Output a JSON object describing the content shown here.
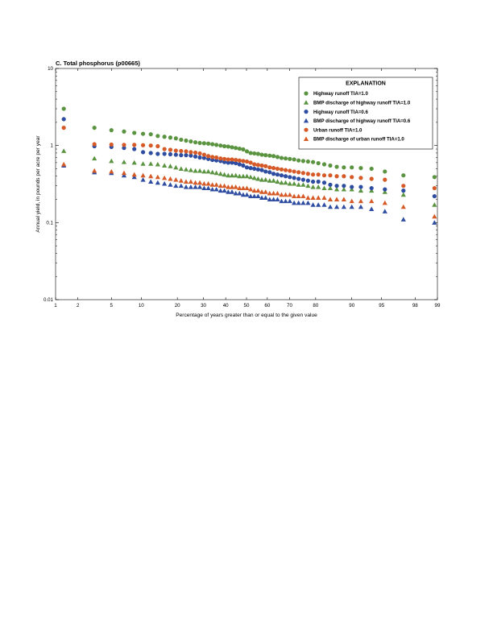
{
  "chart_data": {
    "type": "scatter",
    "title": "C. Total phosphorus (p00665)",
    "xlabel": "Percentage of years greater than or equal to the given value",
    "ylabel": "Annual yield, in pounds per acre per year",
    "x_scale": "probability",
    "y_scale": "log",
    "xlim": [
      1,
      99
    ],
    "ylim": [
      0.01,
      10
    ],
    "x_ticks": [
      1,
      2,
      5,
      10,
      20,
      30,
      40,
      50,
      60,
      70,
      80,
      90,
      95,
      98,
      99
    ],
    "y_ticks": [
      0.01,
      0.1,
      1,
      10
    ],
    "grid": false,
    "legend": {
      "title": "EXPLANATION",
      "position": "top-right"
    },
    "x": [
      1.3,
      3.2,
      5.0,
      6.8,
      8.6,
      10.4,
      12.2,
      14.0,
      15.9,
      17.7,
      19.5,
      21.3,
      23.1,
      24.9,
      26.7,
      28.5,
      30.3,
      32.1,
      33.9,
      35.7,
      37.6,
      39.4,
      41.2,
      43.0,
      44.8,
      46.6,
      48.4,
      50.2,
      52.0,
      53.8,
      55.6,
      57.4,
      59.2,
      61.1,
      62.9,
      64.7,
      66.5,
      68.3,
      70.1,
      71.9,
      73.7,
      75.5,
      77.3,
      79.1,
      80.9,
      82.8,
      84.6,
      86.4,
      88.2,
      90.0,
      91.8,
      93.6,
      95.4,
      97.2,
      98.9
    ],
    "series": [
      {
        "name": "Highway runoff TIA=1.0",
        "marker": "circle",
        "color": "#5b9440",
        "values": [
          3.0,
          1.7,
          1.58,
          1.52,
          1.46,
          1.42,
          1.4,
          1.33,
          1.3,
          1.27,
          1.24,
          1.19,
          1.16,
          1.13,
          1.1,
          1.08,
          1.07,
          1.06,
          1.04,
          1.02,
          1.0,
          0.98,
          0.97,
          0.95,
          0.93,
          0.91,
          0.89,
          0.84,
          0.8,
          0.79,
          0.78,
          0.76,
          0.75,
          0.74,
          0.73,
          0.71,
          0.69,
          0.68,
          0.67,
          0.66,
          0.64,
          0.63,
          0.62,
          0.61,
          0.59,
          0.57,
          0.55,
          0.53,
          0.52,
          0.52,
          0.51,
          0.5,
          0.46,
          0.41,
          0.39
        ]
      },
      {
        "name": "BMP discharge of highway runoff TIA=1.0",
        "marker": "triangle",
        "color": "#5b9440",
        "values": [
          0.85,
          0.68,
          0.63,
          0.61,
          0.6,
          0.58,
          0.58,
          0.57,
          0.55,
          0.54,
          0.52,
          0.5,
          0.49,
          0.48,
          0.47,
          0.47,
          0.46,
          0.46,
          0.45,
          0.44,
          0.43,
          0.42,
          0.41,
          0.41,
          0.41,
          0.4,
          0.4,
          0.4,
          0.39,
          0.38,
          0.37,
          0.36,
          0.36,
          0.35,
          0.35,
          0.34,
          0.33,
          0.33,
          0.32,
          0.32,
          0.31,
          0.31,
          0.3,
          0.29,
          0.29,
          0.28,
          0.28,
          0.27,
          0.27,
          0.27,
          0.26,
          0.26,
          0.25,
          0.23,
          0.17
        ]
      },
      {
        "name": "Highway runoff TIA=0.6",
        "marker": "circle",
        "color": "#2e4da0",
        "values": [
          2.2,
          0.98,
          0.96,
          0.93,
          0.9,
          0.82,
          0.8,
          0.78,
          0.78,
          0.77,
          0.76,
          0.75,
          0.75,
          0.74,
          0.72,
          0.7,
          0.69,
          0.67,
          0.65,
          0.64,
          0.63,
          0.61,
          0.6,
          0.6,
          0.59,
          0.57,
          0.55,
          0.52,
          0.51,
          0.5,
          0.49,
          0.48,
          0.46,
          0.45,
          0.43,
          0.42,
          0.41,
          0.4,
          0.39,
          0.38,
          0.37,
          0.36,
          0.35,
          0.34,
          0.34,
          0.33,
          0.31,
          0.3,
          0.3,
          0.29,
          0.29,
          0.28,
          0.27,
          0.26,
          0.22
        ]
      },
      {
        "name": "BMP discharge of highway runoff TIA=0.6",
        "marker": "triangle",
        "color": "#2e4da0",
        "values": [
          0.55,
          0.45,
          0.44,
          0.41,
          0.39,
          0.36,
          0.34,
          0.33,
          0.32,
          0.31,
          0.3,
          0.3,
          0.29,
          0.29,
          0.29,
          0.29,
          0.28,
          0.28,
          0.27,
          0.27,
          0.26,
          0.26,
          0.25,
          0.25,
          0.24,
          0.24,
          0.23,
          0.23,
          0.22,
          0.22,
          0.22,
          0.21,
          0.21,
          0.2,
          0.2,
          0.2,
          0.19,
          0.19,
          0.19,
          0.18,
          0.18,
          0.18,
          0.18,
          0.17,
          0.17,
          0.17,
          0.16,
          0.16,
          0.16,
          0.16,
          0.16,
          0.15,
          0.14,
          0.11,
          0.1
        ]
      },
      {
        "name": "Urban runoff TIA=1.0",
        "marker": "circle",
        "color": "#d55a27",
        "values": [
          1.7,
          1.04,
          1.03,
          1.02,
          1.02,
          1.01,
          1.0,
          0.98,
          0.9,
          0.88,
          0.86,
          0.85,
          0.84,
          0.82,
          0.81,
          0.79,
          0.76,
          0.73,
          0.71,
          0.7,
          0.68,
          0.67,
          0.66,
          0.66,
          0.65,
          0.64,
          0.63,
          0.62,
          0.6,
          0.57,
          0.56,
          0.55,
          0.54,
          0.52,
          0.51,
          0.5,
          0.49,
          0.48,
          0.47,
          0.46,
          0.45,
          0.44,
          0.43,
          0.42,
          0.42,
          0.41,
          0.41,
          0.4,
          0.4,
          0.39,
          0.38,
          0.37,
          0.36,
          0.3,
          0.28
        ]
      },
      {
        "name": "BMP discharge of urban runoff TIA=1.0",
        "marker": "triangle",
        "color": "#d55a27",
        "values": [
          0.57,
          0.47,
          0.46,
          0.44,
          0.42,
          0.41,
          0.4,
          0.39,
          0.38,
          0.37,
          0.36,
          0.35,
          0.34,
          0.34,
          0.33,
          0.33,
          0.32,
          0.32,
          0.31,
          0.31,
          0.3,
          0.3,
          0.29,
          0.29,
          0.29,
          0.28,
          0.28,
          0.28,
          0.27,
          0.26,
          0.26,
          0.25,
          0.25,
          0.24,
          0.24,
          0.24,
          0.23,
          0.23,
          0.23,
          0.22,
          0.22,
          0.22,
          0.21,
          0.21,
          0.21,
          0.21,
          0.2,
          0.2,
          0.2,
          0.19,
          0.19,
          0.19,
          0.18,
          0.16,
          0.12
        ]
      }
    ]
  }
}
